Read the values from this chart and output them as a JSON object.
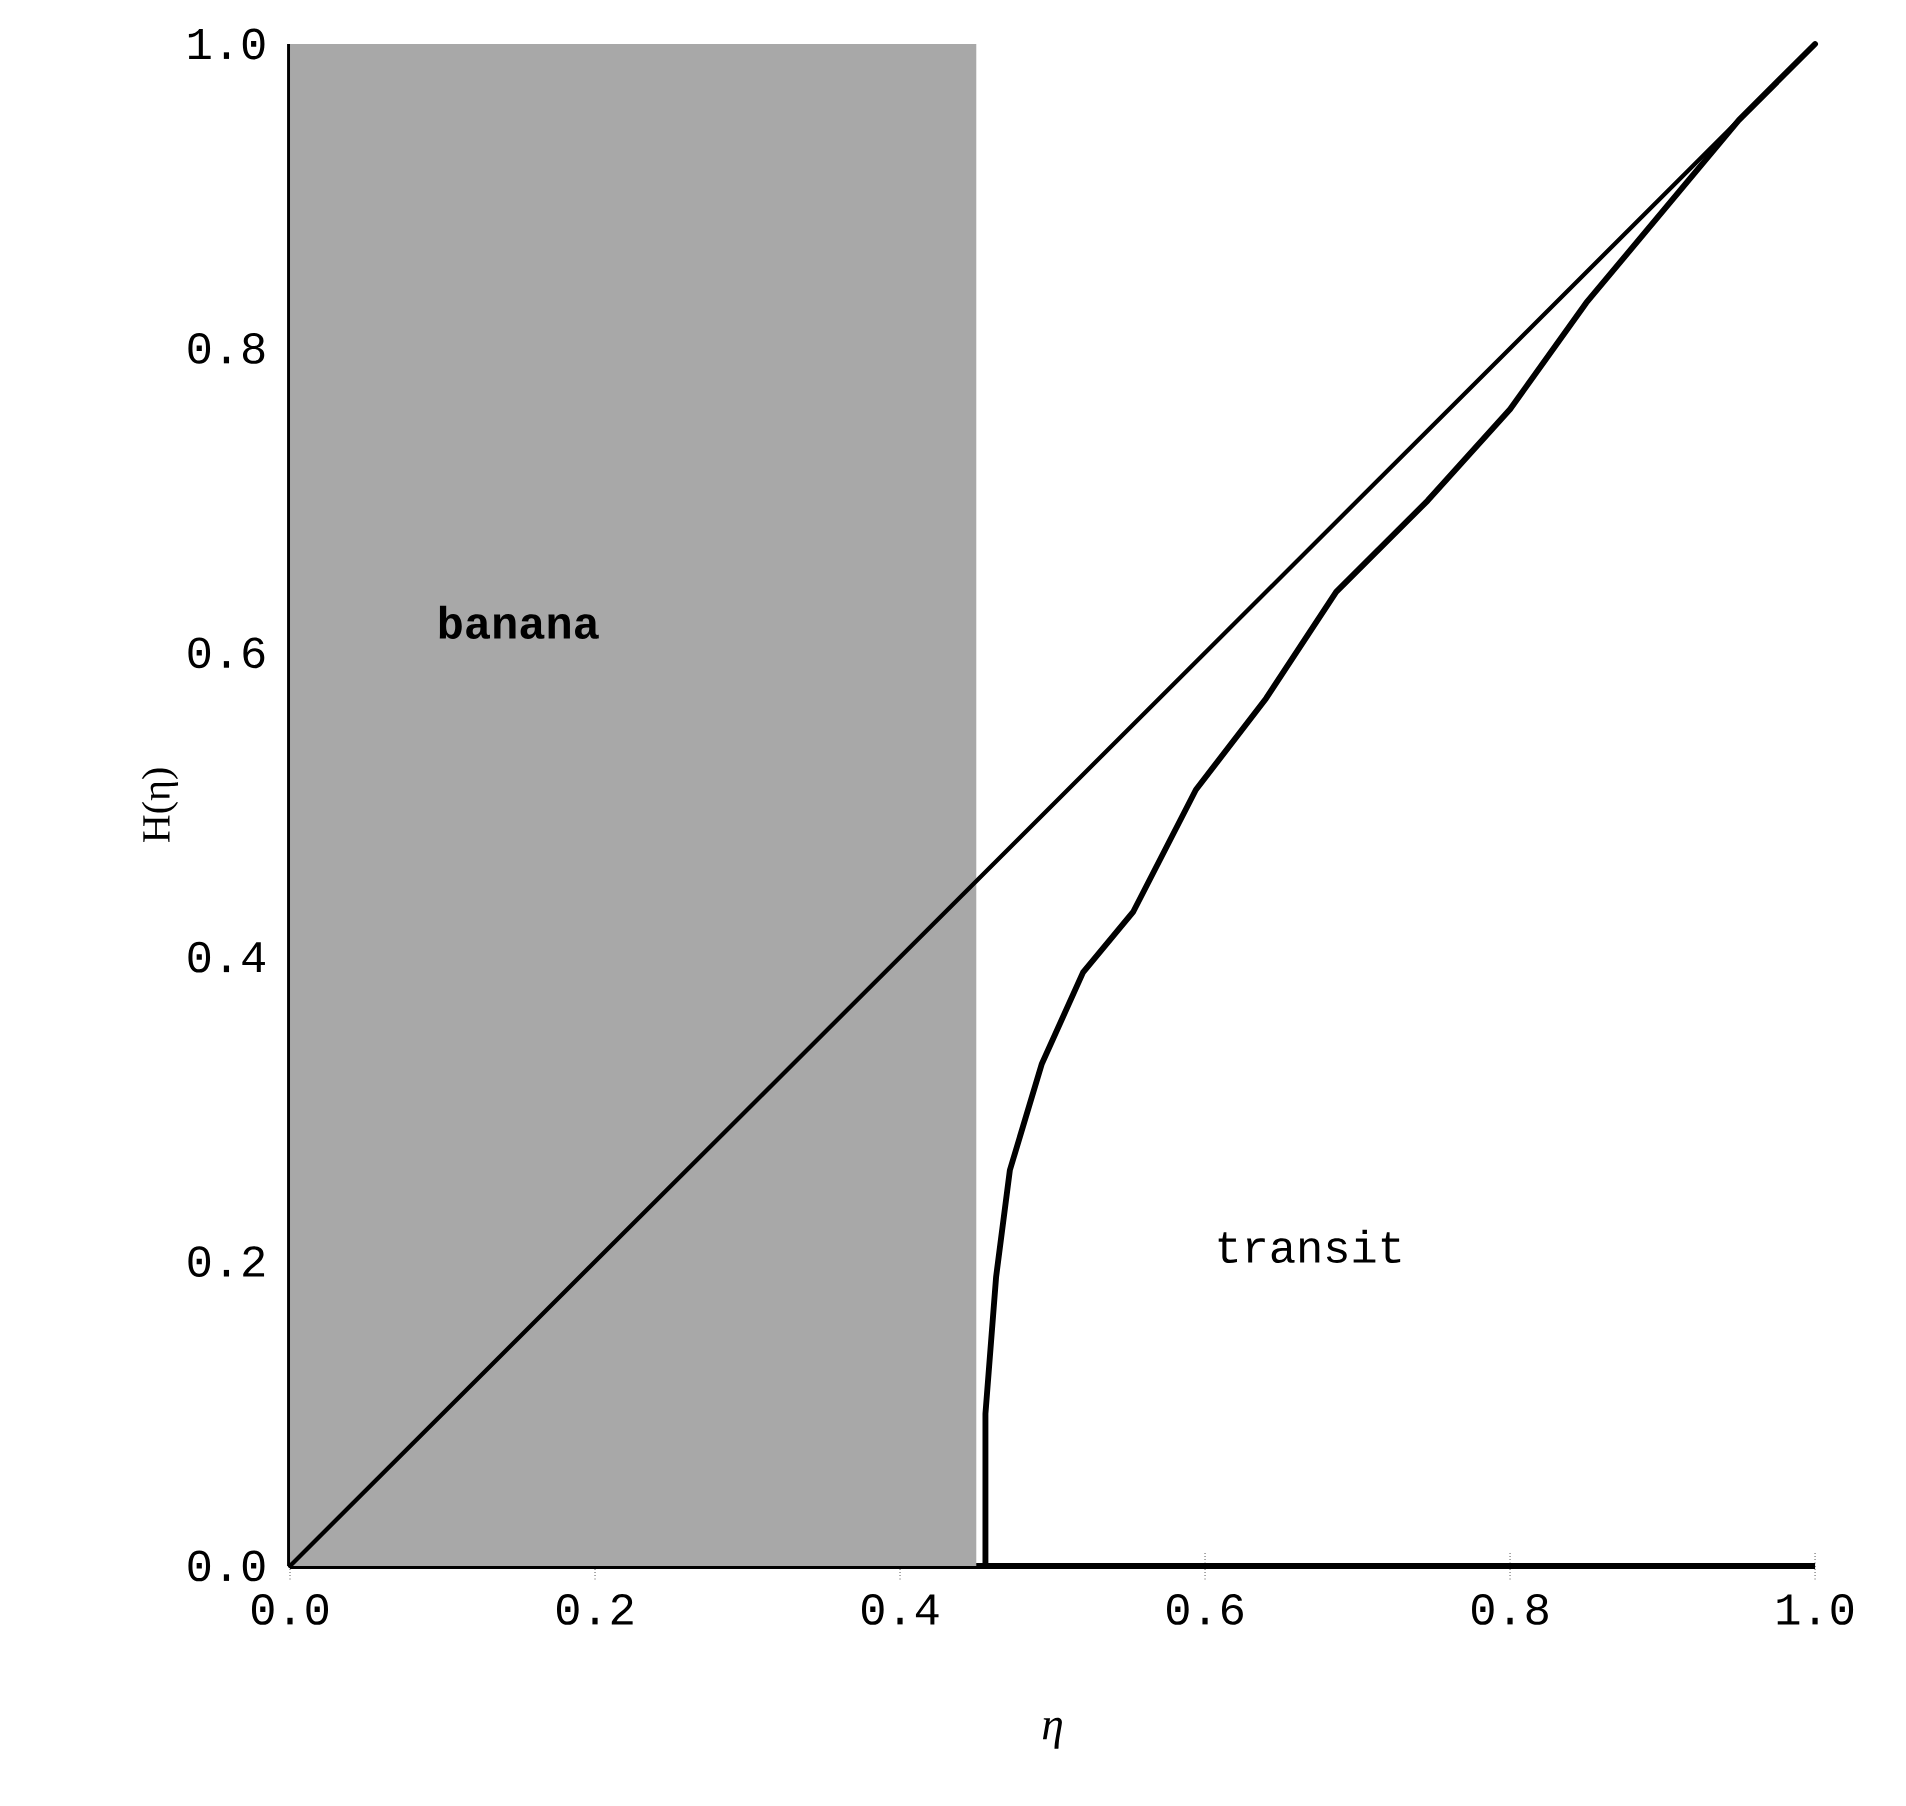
{
  "chart_data": {
    "type": "line",
    "xlabel": "η",
    "ylabel": "H(η)",
    "series": [
      {
        "color": "#000000",
        "x": [
          0,
          1
        ],
        "values": [
          0,
          1
        ]
      },
      {
        "color": "#000000",
        "x": [
          0.456,
          0.456,
          0.463,
          0.472,
          0.493,
          0.52,
          0.553,
          0.594,
          0.64,
          0.686,
          0.746,
          0.8,
          0.85,
          0.9,
          0.95,
          1
        ],
        "values": [
          0,
          0.1,
          0.19,
          0.26,
          0.33,
          0.39,
          0.43,
          0.51,
          0.57,
          0.64,
          0.7,
          0.76,
          0.83,
          0.89,
          0.95,
          1
        ]
      }
    ],
    "bands": [
      {
        "axis": "x",
        "from": 0,
        "to": 0.45,
        "label": "banana",
        "color": "#a8a8a8"
      }
    ],
    "annotations": [
      "transit"
    ],
    "xlim": [
      0,
      1
    ],
    "ylim": [
      0,
      1
    ],
    "xticks": [
      {
        "value": 0,
        "label": "0.0"
      },
      {
        "value": 0.2,
        "label": "0.2"
      },
      {
        "value": 0.4,
        "label": "0.4"
      },
      {
        "value": 0.6,
        "label": "0.6"
      },
      {
        "value": 0.8,
        "label": "0.8"
      },
      {
        "value": 1,
        "label": "1.0"
      }
    ],
    "yticks": [
      {
        "value": 0,
        "label": "0.0"
      },
      {
        "value": 0.2,
        "label": "0.2"
      },
      {
        "value": 0.4,
        "label": "0.4"
      },
      {
        "value": 0.6,
        "label": "0.6"
      },
      {
        "value": 0.8,
        "label": "0.8"
      },
      {
        "value": 1,
        "label": "1.0"
      }
    ],
    "marker": "none",
    "line_style": "solid",
    "grid": false
  }
}
